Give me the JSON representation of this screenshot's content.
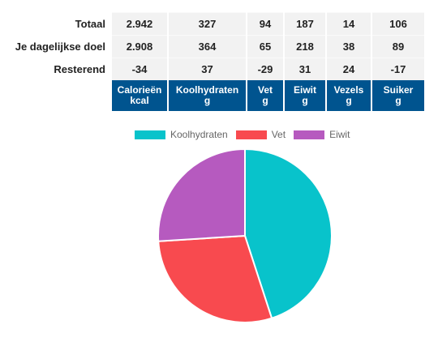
{
  "table": {
    "rows": [
      {
        "label": "Totaal",
        "values": [
          "2.942",
          "327",
          "94",
          "187",
          "14",
          "106"
        ]
      },
      {
        "label": "Je dagelijkse doel",
        "values": [
          "2.908",
          "364",
          "65",
          "218",
          "38",
          "89"
        ]
      },
      {
        "label": "Resterend",
        "values": [
          "-34",
          "37",
          "-29",
          "31",
          "24",
          "-17"
        ]
      }
    ],
    "columns": [
      {
        "name": "Calorieën",
        "unit": "kcal"
      },
      {
        "name": "Koolhydraten",
        "unit": "g"
      },
      {
        "name": "Vet",
        "unit": "g"
      },
      {
        "name": "Eiwit",
        "unit": "g"
      },
      {
        "name": "Vezels",
        "unit": "g"
      },
      {
        "name": "Suiker",
        "unit": "g"
      }
    ]
  },
  "colors": {
    "header_bg": "#00548f",
    "negative": "#cc1111",
    "positive": "#2a7a12",
    "slice_koolhydraten": "#08c3cb",
    "slice_vet": "#f84a4f",
    "slice_eiwit": "#b65abf"
  },
  "chart_data": {
    "type": "pie",
    "categories": [
      "Koolhydraten",
      "Vet",
      "Eiwit"
    ],
    "values": [
      45,
      29,
      26
    ],
    "legend": [
      "Koolhydraten",
      "Vet",
      "Eiwit"
    ],
    "legend_position": "top",
    "colors": [
      "#08c3cb",
      "#f84a4f",
      "#b65abf"
    ]
  }
}
